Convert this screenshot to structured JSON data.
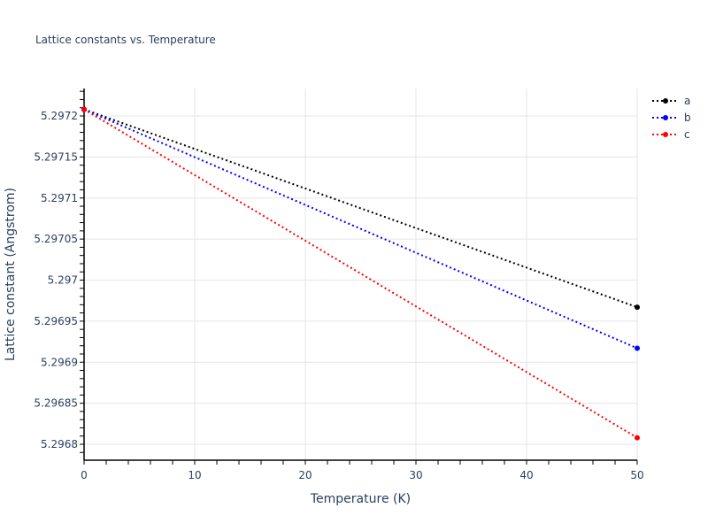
{
  "title": "Lattice constants vs. Temperature",
  "chart_data": {
    "type": "line",
    "title": "Lattice constants vs. Temperature",
    "xlabel": "Temperature (K)",
    "ylabel": "Lattice constant (Angstrom)",
    "xlim": [
      0,
      50
    ],
    "ylim": [
      5.296775,
      5.297235
    ],
    "x_ticks": [
      "0",
      "10",
      "20",
      "30",
      "40",
      "50"
    ],
    "y_ticks": [
      "5.2968",
      "5.29685",
      "5.2969",
      "5.29695",
      "5.297",
      "5.29705",
      "5.2971",
      "5.29715",
      "5.2972"
    ],
    "grid": true,
    "legend_position": "top-right",
    "x": [
      0,
      50
    ],
    "series": [
      {
        "name": "a",
        "color": "#000000",
        "values": [
          5.297208,
          5.296967
        ]
      },
      {
        "name": "b",
        "color": "#0000ff",
        "values": [
          5.297208,
          5.296917
        ]
      },
      {
        "name": "c",
        "color": "#ff0000",
        "values": [
          5.297208,
          5.296808
        ]
      }
    ]
  }
}
